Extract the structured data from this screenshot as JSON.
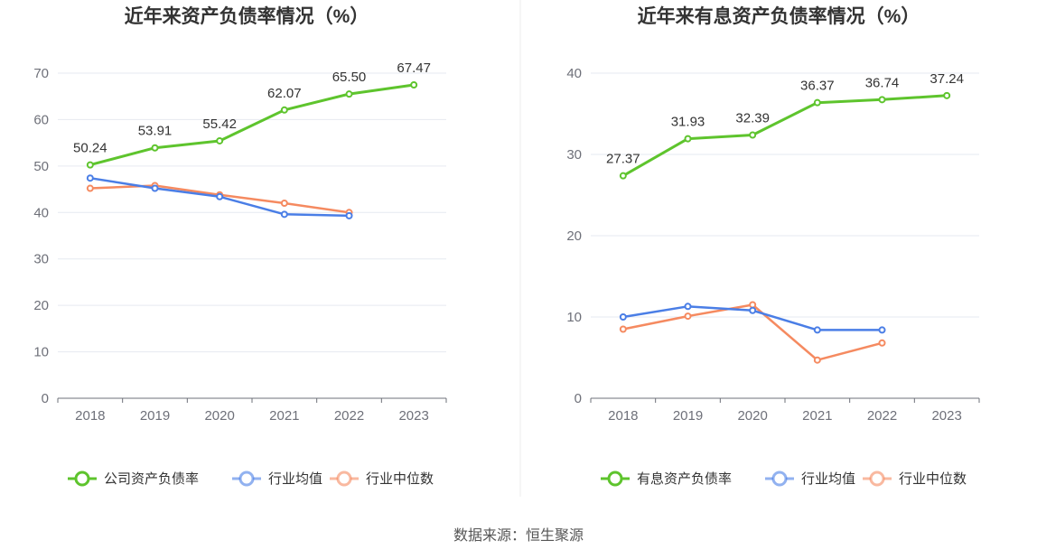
{
  "footer": {
    "source": "数据来源：恒生聚源"
  },
  "chart_data": [
    {
      "type": "line",
      "title": "近年来资产负债率情况（%）",
      "categories": [
        "2018",
        "2019",
        "2020",
        "2021",
        "2022",
        "2023"
      ],
      "ylim": [
        0,
        70
      ],
      "yticks": [
        0,
        10,
        20,
        30,
        40,
        50,
        60,
        70
      ],
      "grid": true,
      "legend_position": "bottom",
      "series": [
        {
          "name": "公司资产负债率",
          "color": "#5ec42d",
          "show_labels": true,
          "values": [
            50.24,
            53.91,
            55.42,
            62.07,
            65.5,
            67.47
          ],
          "labels": [
            "50.24",
            "53.91",
            "55.42",
            "62.07",
            "65.50",
            "67.47"
          ]
        },
        {
          "name": "行业均值",
          "color": "#4a7ee6",
          "show_labels": false,
          "values": [
            47.4,
            45.2,
            43.4,
            39.6,
            39.3,
            null
          ]
        },
        {
          "name": "行业中位数",
          "color": "#f58a60",
          "show_labels": false,
          "values": [
            45.2,
            45.8,
            43.8,
            42.0,
            40.0,
            null
          ]
        }
      ]
    },
    {
      "type": "line",
      "title": "近年来有息资产负债率情况（%）",
      "categories": [
        "2018",
        "2019",
        "2020",
        "2021",
        "2022",
        "2023"
      ],
      "ylim": [
        0,
        40
      ],
      "yticks": [
        0,
        10,
        20,
        30,
        40
      ],
      "grid": true,
      "legend_position": "bottom",
      "series": [
        {
          "name": "有息资产负债率",
          "color": "#5ec42d",
          "show_labels": true,
          "values": [
            27.37,
            31.93,
            32.39,
            36.37,
            36.74,
            37.24
          ],
          "labels": [
            "27.37",
            "31.93",
            "32.39",
            "36.37",
            "36.74",
            "37.24"
          ]
        },
        {
          "name": "行业均值",
          "color": "#4a7ee6",
          "show_labels": false,
          "values": [
            10.0,
            11.3,
            10.8,
            8.4,
            8.4,
            null
          ]
        },
        {
          "name": "行业中位数",
          "color": "#f58a60",
          "show_labels": false,
          "values": [
            8.5,
            10.1,
            11.5,
            4.7,
            6.8,
            null
          ]
        }
      ]
    }
  ]
}
